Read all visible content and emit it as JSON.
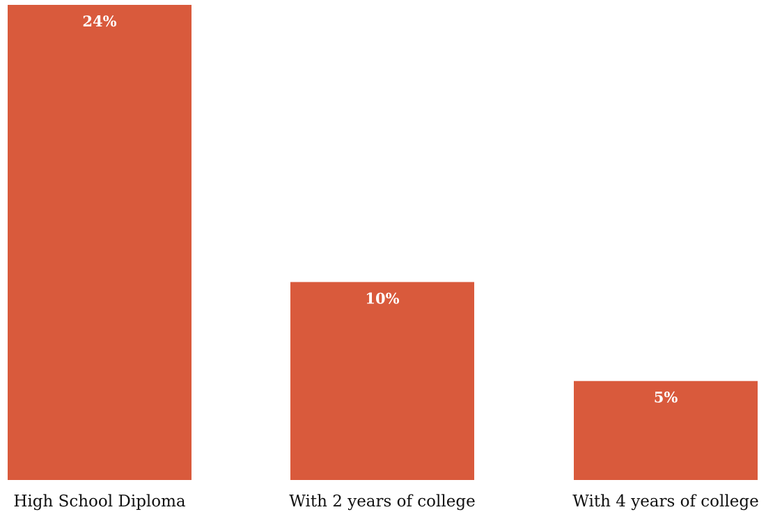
{
  "chart_data": {
    "type": "bar",
    "categories": [
      "High School Diploma",
      "With 2 years of college",
      "With 4 years of college"
    ],
    "values": [
      24,
      10,
      5
    ],
    "value_labels": [
      "24%",
      "10%",
      "5%"
    ],
    "ylim": [
      0,
      24
    ],
    "grid": false,
    "legend": "none",
    "bar_color": "#D95A3C",
    "label_color": "#FFFFFF",
    "text_color": "#111111"
  }
}
